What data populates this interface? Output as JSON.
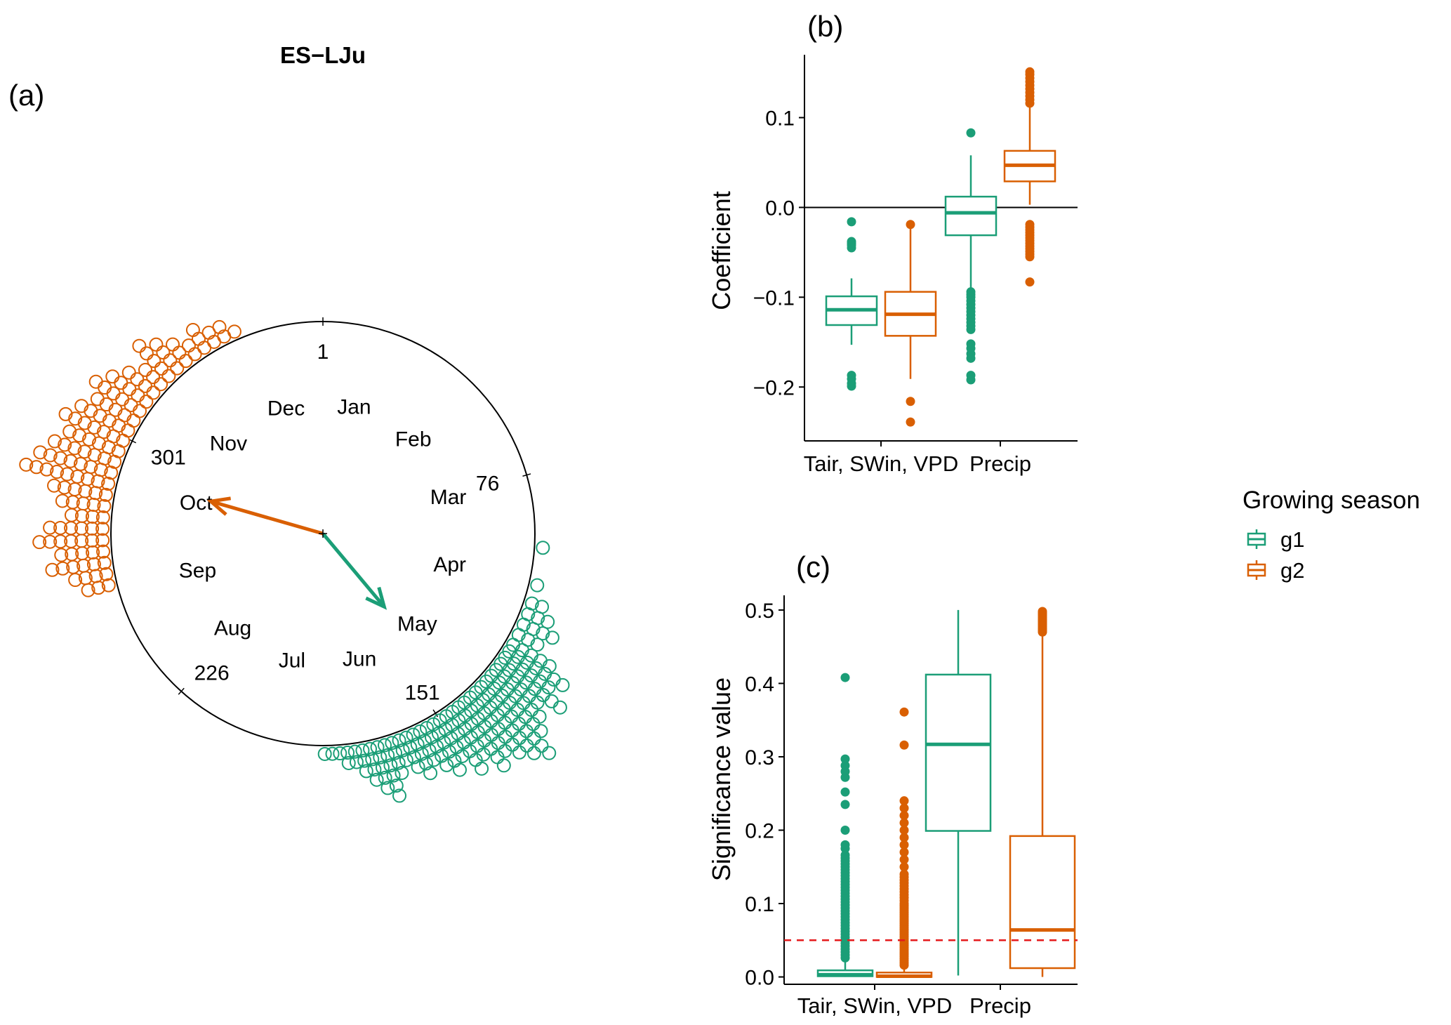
{
  "figure": {
    "panel_labels": {
      "a": "(a)",
      "b": "(b)",
      "c": "(c)"
    },
    "colors": {
      "g1": "#1b9e77",
      "g2": "#d95f02",
      "threshold": "#e41a1c",
      "axis": "#000000"
    }
  },
  "chart_data": [
    {
      "type": "circular",
      "panel": "a",
      "title": "ES−LJu",
      "day_ticks": [
        {
          "day": 1,
          "label": "1"
        },
        {
          "day": 76,
          "label": "76"
        },
        {
          "day": 151,
          "label": "151"
        },
        {
          "day": 226,
          "label": "226"
        },
        {
          "day": 301,
          "label": "301"
        }
      ],
      "months": [
        "Jan",
        "Feb",
        "Mar",
        "Apr",
        "May",
        "Jun",
        "Jul",
        "Aug",
        "Sep",
        "Oct",
        "Nov",
        "Dec"
      ],
      "series": [
        {
          "name": "g1",
          "color": "#1b9e77",
          "mean_day": 143,
          "resultant_length": 0.45,
          "dots": [
            [
              96,
              1
            ],
            [
              106,
              1
            ],
            [
              111,
              2
            ],
            [
              114,
              3
            ],
            [
              117,
              4
            ],
            [
              120,
              3
            ],
            [
              123,
              5
            ],
            [
              125,
              7
            ],
            [
              127,
              6
            ],
            [
              129,
              8
            ],
            [
              131,
              6
            ],
            [
              133,
              7
            ],
            [
              135,
              8
            ],
            [
              137,
              10
            ],
            [
              139,
              9
            ],
            [
              141,
              8
            ],
            [
              143,
              7
            ],
            [
              145,
              8
            ],
            [
              147,
              6
            ],
            [
              149,
              7
            ],
            [
              151,
              5
            ],
            [
              153,
              6
            ],
            [
              155,
              5
            ],
            [
              157,
              4
            ],
            [
              159,
              5
            ],
            [
              161,
              4
            ],
            [
              163,
              3
            ],
            [
              165,
              4
            ],
            [
              167,
              6
            ],
            [
              169,
              5
            ],
            [
              171,
              4
            ],
            [
              173,
              3
            ],
            [
              175,
              2
            ],
            [
              177,
              2
            ],
            [
              179,
              1
            ],
            [
              181,
              1
            ],
            [
              183,
              1
            ]
          ]
        },
        {
          "name": "g2",
          "color": "#d95f02",
          "mean_day": 291,
          "resultant_length": 0.55,
          "dots": [
            [
              261,
              3
            ],
            [
              264,
              4
            ],
            [
              267,
              6
            ],
            [
              270,
              5
            ],
            [
              273,
              7
            ],
            [
              276,
              6
            ],
            [
              279,
              4
            ],
            [
              282,
              5
            ],
            [
              285,
              6
            ],
            [
              288,
              9
            ],
            [
              291,
              8
            ],
            [
              294,
              7
            ],
            [
              297,
              6
            ],
            [
              300,
              7
            ],
            [
              303,
              6
            ],
            [
              306,
              5
            ],
            [
              309,
              6
            ],
            [
              312,
              5
            ],
            [
              315,
              4
            ],
            [
              318,
              3
            ],
            [
              321,
              5
            ],
            [
              324,
              4
            ],
            [
              327,
              3
            ],
            [
              330,
              2
            ],
            [
              333,
              3
            ],
            [
              336,
              2
            ],
            [
              339,
              2
            ],
            [
              342,
              1
            ]
          ]
        }
      ]
    },
    {
      "type": "boxplot",
      "panel": "b",
      "title": "",
      "xlabel": "",
      "ylabel": "Coefficient",
      "categories": [
        "Tair, SWin, VPD",
        "Precip"
      ],
      "ylim": [
        -0.26,
        0.17
      ],
      "yticks": [
        -0.2,
        -0.1,
        0.0,
        0.1
      ],
      "ytick_labels": [
        "−0.2",
        "−0.1",
        "0.0",
        "0.1"
      ],
      "hline": 0,
      "series": [
        {
          "name": "g1",
          "boxes": [
            {
              "min": -0.153,
              "q1": -0.131,
              "median": -0.114,
              "q3": -0.099,
              "max": -0.079,
              "outliers": [
                -0.016,
                -0.038,
                -0.04,
                -0.042,
                -0.045,
                -0.187,
                -0.191,
                -0.196,
                -0.199
              ]
            },
            {
              "min": -0.09,
              "q1": -0.031,
              "median": -0.006,
              "q3": 0.012,
              "max": 0.058,
              "outliers": [
                0.083,
                -0.094,
                -0.097,
                -0.1,
                -0.104,
                -0.108,
                -0.112,
                -0.116,
                -0.12,
                -0.124,
                -0.128,
                -0.132,
                -0.136,
                -0.152,
                -0.157,
                -0.163,
                -0.168,
                -0.187,
                -0.192
              ]
            }
          ]
        },
        {
          "name": "g2",
          "boxes": [
            {
              "min": -0.191,
              "q1": -0.143,
              "median": -0.119,
              "q3": -0.094,
              "max": -0.017,
              "outliers": [
                -0.019,
                -0.216,
                -0.239
              ]
            },
            {
              "min": 0.003,
              "q1": 0.029,
              "median": 0.047,
              "q3": 0.063,
              "max": 0.112,
              "outliers": [
                0.116,
                0.12,
                0.124,
                0.128,
                0.132,
                0.136,
                0.14,
                0.144,
                0.148,
                0.151,
                -0.019,
                -0.022,
                -0.025,
                -0.028,
                -0.031,
                -0.034,
                -0.037,
                -0.04,
                -0.043,
                -0.046,
                -0.049,
                -0.052,
                -0.055,
                -0.083
              ]
            }
          ]
        }
      ]
    },
    {
      "type": "boxplot",
      "panel": "c",
      "title": "",
      "xlabel": "",
      "ylabel": "Significance value",
      "categories": [
        "Tair, SWin, VPD",
        "Precip"
      ],
      "ylim": [
        -0.01,
        0.52
      ],
      "yticks": [
        0.0,
        0.1,
        0.2,
        0.3,
        0.4,
        0.5
      ],
      "ytick_labels": [
        "0.0",
        "0.1",
        "0.2",
        "0.3",
        "0.4",
        "0.5"
      ],
      "threshold": 0.05,
      "series": [
        {
          "name": "g1",
          "boxes": [
            {
              "min": 0.0,
              "q1": 0.001,
              "median": 0.003,
              "q3": 0.009,
              "max": 0.023,
              "outliers": [
                0.026,
                0.03,
                0.034,
                0.038,
                0.042,
                0.046,
                0.05,
                0.054,
                0.058,
                0.062,
                0.066,
                0.07,
                0.074,
                0.078,
                0.082,
                0.086,
                0.09,
                0.094,
                0.098,
                0.102,
                0.106,
                0.11,
                0.114,
                0.118,
                0.122,
                0.126,
                0.13,
                0.134,
                0.138,
                0.142,
                0.146,
                0.15,
                0.154,
                0.158,
                0.162,
                0.166,
                0.175,
                0.18,
                0.2,
                0.235,
                0.252,
                0.272,
                0.28,
                0.288,
                0.297,
                0.408
              ]
            }
          ]
        },
        {
          "name": "g2",
          "boxes": [
            {
              "min": 0.0,
              "q1": 0.0,
              "median": 0.001,
              "q3": 0.006,
              "max": 0.013,
              "outliers": [
                0.016,
                0.019,
                0.022,
                0.025,
                0.028,
                0.031,
                0.034,
                0.037,
                0.04,
                0.043,
                0.046,
                0.049,
                0.052,
                0.055,
                0.058,
                0.061,
                0.064,
                0.067,
                0.07,
                0.073,
                0.076,
                0.079,
                0.082,
                0.085,
                0.088,
                0.091,
                0.094,
                0.097,
                0.1,
                0.104,
                0.108,
                0.112,
                0.116,
                0.12,
                0.124,
                0.128,
                0.132,
                0.136,
                0.14,
                0.15,
                0.16,
                0.17,
                0.18,
                0.19,
                0.2,
                0.21,
                0.22,
                0.23,
                0.24,
                0.316,
                0.361
              ]
            }
          ]
        }
      ],
      "series_precip": [
        {
          "name": "g1",
          "min": 0.002,
          "q1": 0.199,
          "median": 0.317,
          "q3": 0.412,
          "max": 0.5,
          "outliers": []
        },
        {
          "name": "g2",
          "min": 0.0,
          "q1": 0.012,
          "median": 0.064,
          "q3": 0.192,
          "max": 0.468,
          "outliers": [
            0.47,
            0.472,
            0.474,
            0.476,
            0.478,
            0.48,
            0.482,
            0.484,
            0.486,
            0.488,
            0.49,
            0.492,
            0.494,
            0.496,
            0.498
          ]
        }
      ]
    }
  ],
  "legend": {
    "title": "Growing season",
    "items": [
      {
        "label": "g1",
        "color": "#1b9e77"
      },
      {
        "label": "g2",
        "color": "#d95f02"
      }
    ]
  }
}
